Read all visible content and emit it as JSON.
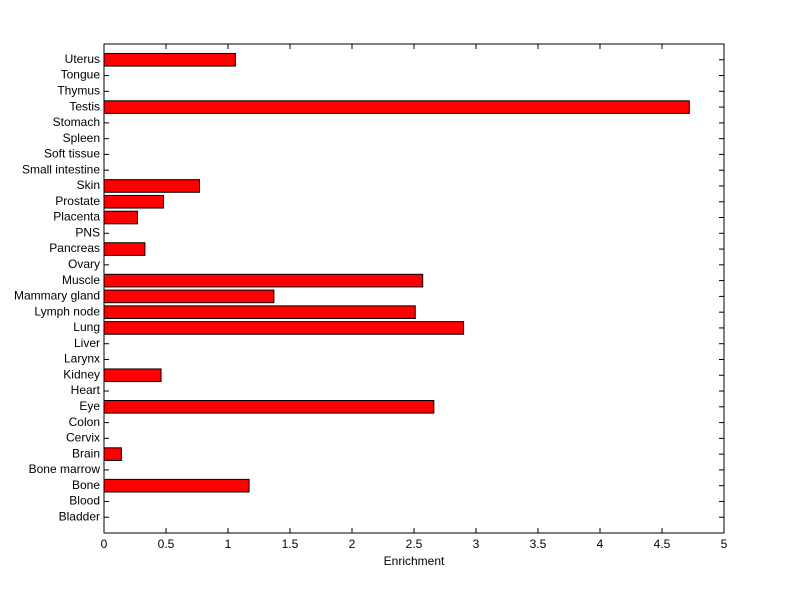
{
  "chart_data": {
    "type": "bar",
    "orientation": "horizontal",
    "x_label": "Enrichment",
    "categories": [
      "Bladder",
      "Blood",
      "Bone",
      "Bone marrow",
      "Brain",
      "Cervix",
      "Colon",
      "Eye",
      "Heart",
      "Kidney",
      "Larynx",
      "Liver",
      "Lung",
      "Lymph node",
      "Mammary gland",
      "Muscle",
      "Ovary",
      "Pancreas",
      "PNS",
      "Placenta",
      "Prostate",
      "Skin",
      "Small intestine",
      "Soft tissue",
      "Spleen",
      "Stomach",
      "Testis",
      "Thymus",
      "Tongue",
      "Uterus"
    ],
    "values": [
      0,
      0,
      1.17,
      0,
      0.14,
      0,
      0,
      2.66,
      0,
      0.46,
      0,
      0,
      2.9,
      2.51,
      1.37,
      2.57,
      0,
      0.33,
      0,
      0.27,
      0.48,
      0.77,
      0,
      0,
      0,
      0,
      4.72,
      0,
      0,
      1.06
    ],
    "color": "#ff0000",
    "xlim": [
      0,
      5
    ],
    "xticks": [
      0,
      0.5,
      1,
      1.5,
      2,
      2.5,
      3,
      3.5,
      4,
      4.5,
      5
    ],
    "grid": false
  }
}
